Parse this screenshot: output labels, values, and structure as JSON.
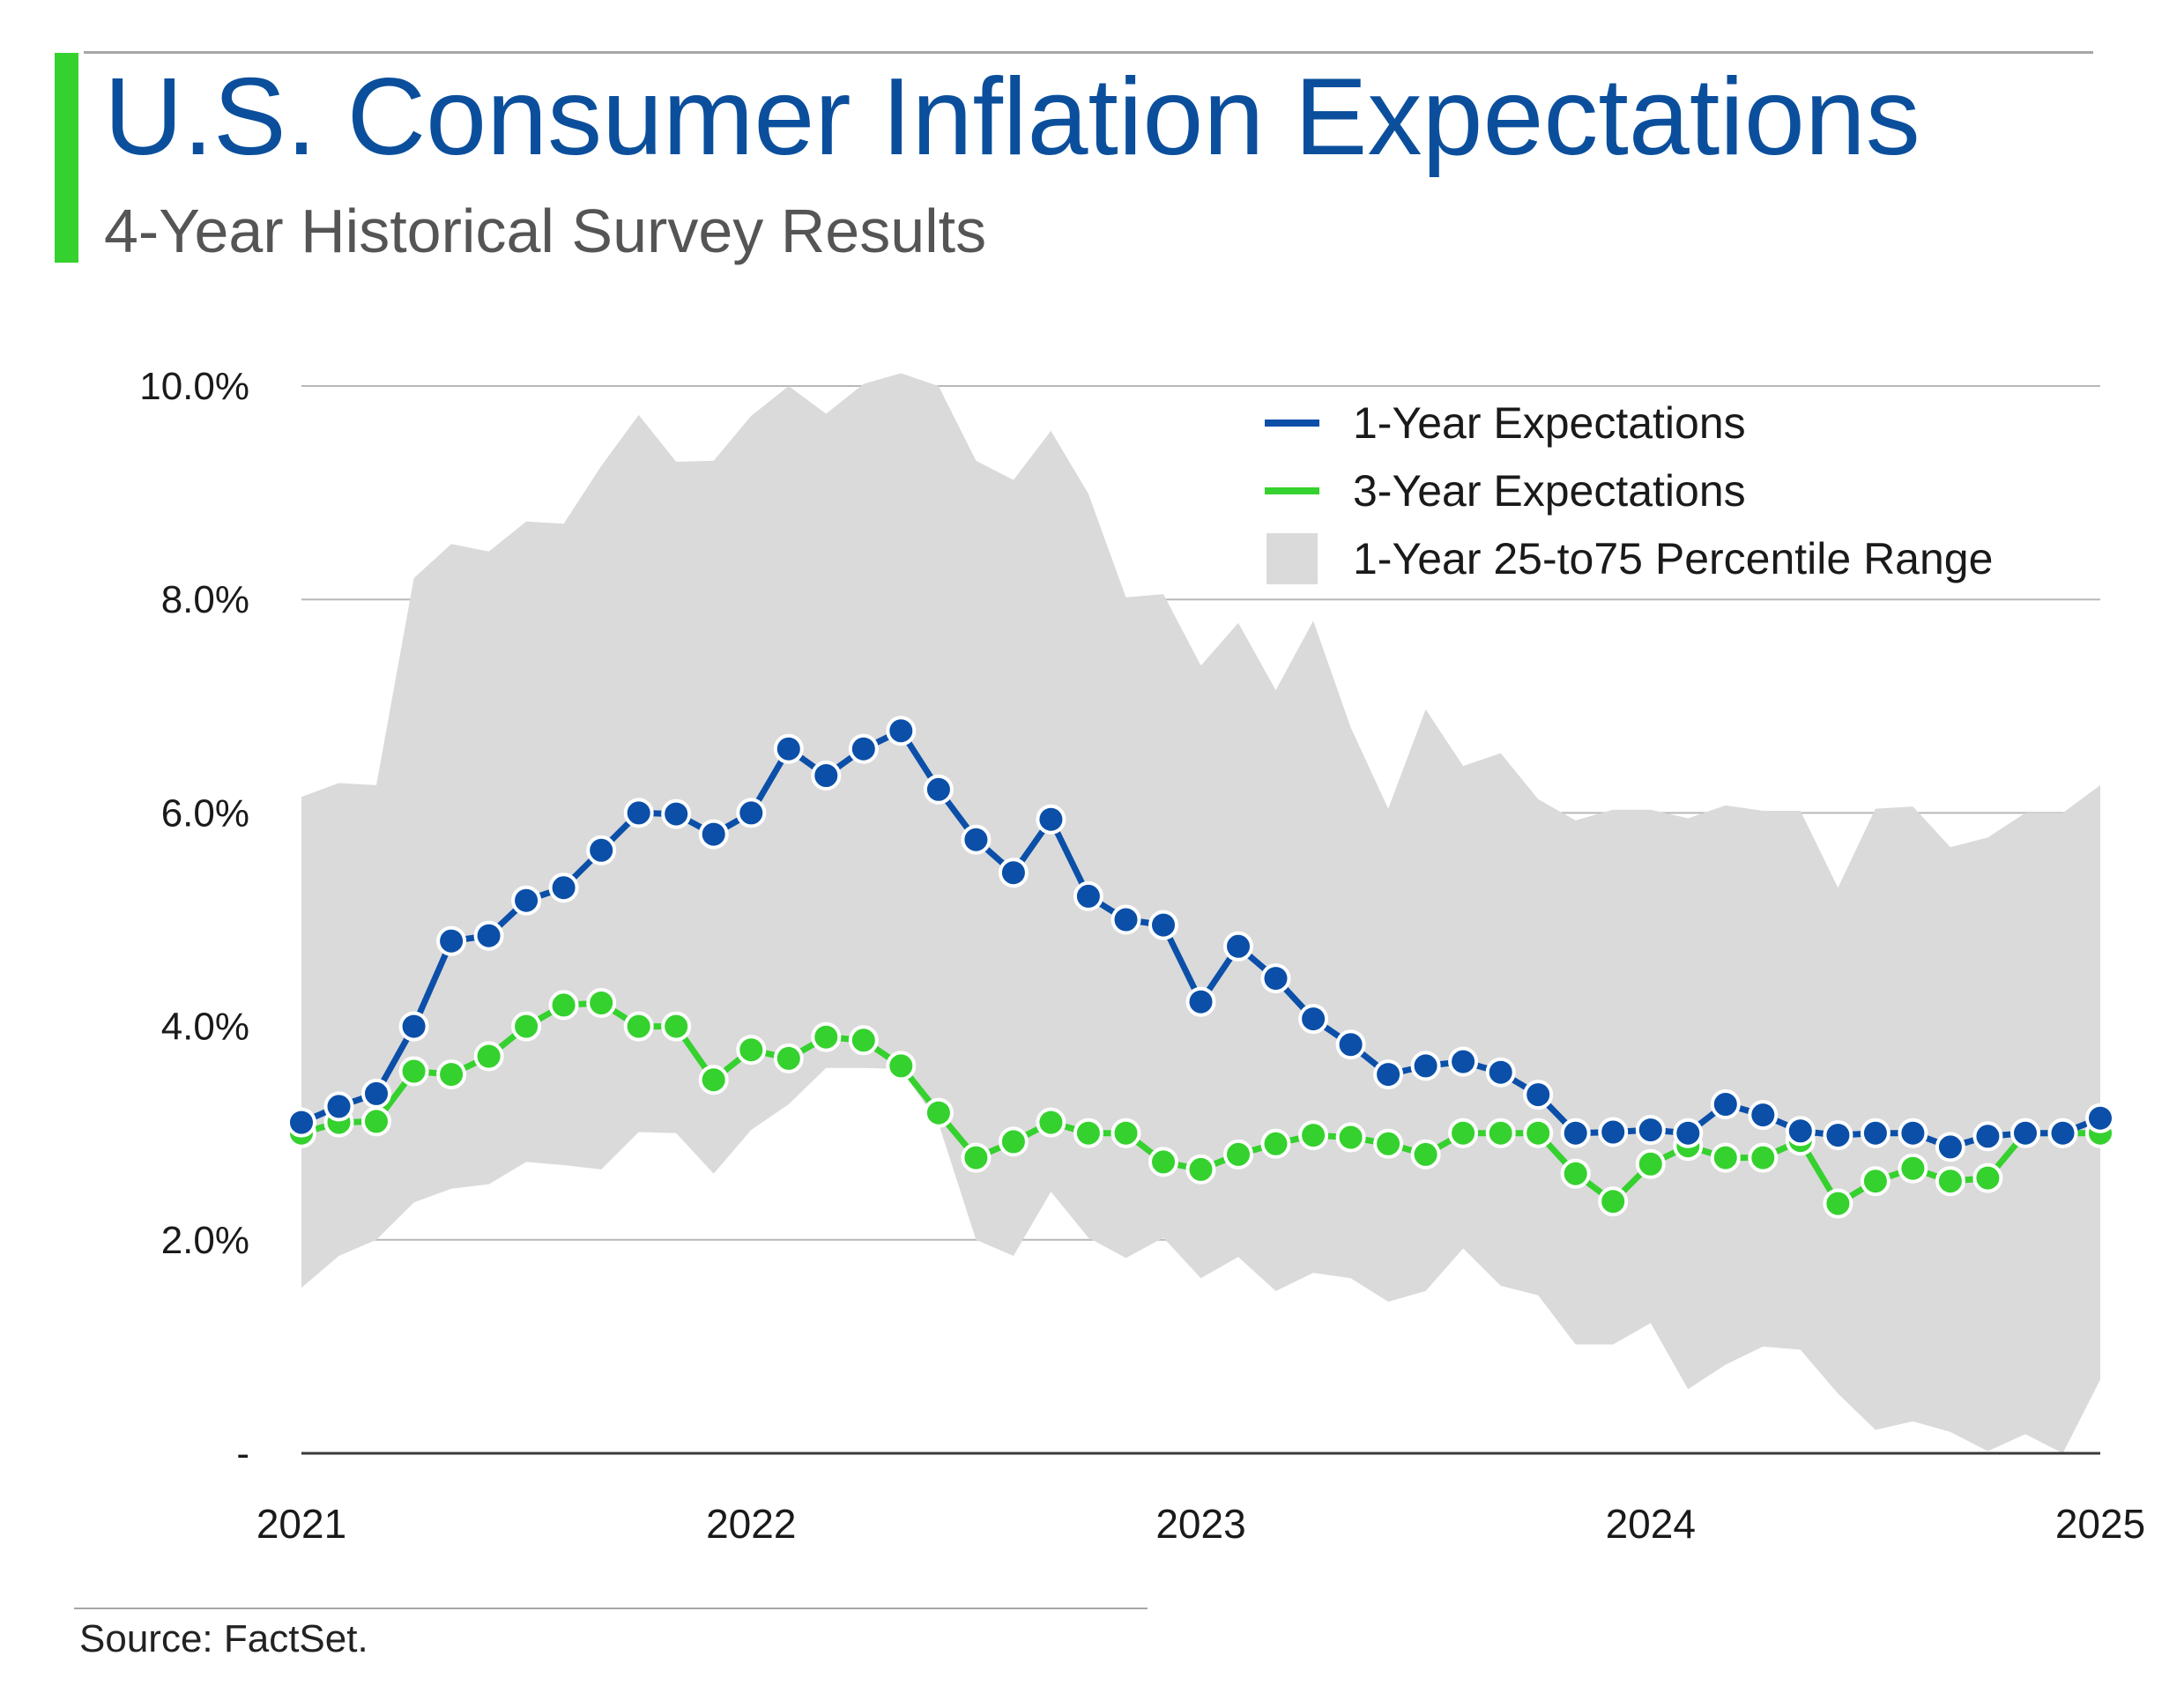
{
  "header": {
    "title": "U.S. Consumer Inflation Expectations",
    "subtitle": "4-Year Historical Survey Results"
  },
  "footer": {
    "source": "Source: FactSet."
  },
  "colors": {
    "one_year": "#0b4fa8",
    "three_year": "#35d12e",
    "range": "#dadada",
    "title": "#0b4f9c",
    "accent": "#35d12e",
    "grid": "#b8b8b8"
  },
  "chart_data": {
    "type": "line",
    "title": "U.S. Consumer Inflation Expectations",
    "subtitle": "4-Year Historical Survey Results",
    "xlabel": "",
    "ylabel": "",
    "x_ticks": [
      "2021",
      "2022",
      "2023",
      "2024",
      "2025"
    ],
    "y_ticks": [
      "-",
      "2.0%",
      "4.0%",
      "6.0%",
      "8.0%",
      "10.0%"
    ],
    "ylim": [
      0,
      10
    ],
    "grid": true,
    "legend_position": "top-right",
    "legend": [
      {
        "label": "1-Year Expectations",
        "kind": "line",
        "color": "#0b4fa8"
      },
      {
        "label": "3-Year Expectations",
        "kind": "line",
        "color": "#35d12e"
      },
      {
        "label": "1-Year 25-to75 Percentile Range",
        "kind": "area",
        "color": "#dadada"
      }
    ],
    "x": [
      "2021-01",
      "2021-02",
      "2021-03",
      "2021-04",
      "2021-05",
      "2021-06",
      "2021-07",
      "2021-08",
      "2021-09",
      "2021-10",
      "2021-11",
      "2021-12",
      "2022-01",
      "2022-02",
      "2022-03",
      "2022-04",
      "2022-05",
      "2022-06",
      "2022-07",
      "2022-08",
      "2022-09",
      "2022-10",
      "2022-11",
      "2022-12",
      "2023-01",
      "2023-02",
      "2023-03",
      "2023-04",
      "2023-05",
      "2023-06",
      "2023-07",
      "2023-08",
      "2023-09",
      "2023-10",
      "2023-11",
      "2023-12",
      "2024-01",
      "2024-02",
      "2024-03",
      "2024-04",
      "2024-05",
      "2024-06",
      "2024-07",
      "2024-08",
      "2024-09",
      "2024-10",
      "2024-11",
      "2024-12",
      "2025-01"
    ],
    "series": [
      {
        "name": "1-Year Expectations",
        "values": [
          3.1,
          3.25,
          3.37,
          4.0,
          4.8,
          4.85,
          5.18,
          5.3,
          5.65,
          6.0,
          5.99,
          5.8,
          6.0,
          6.6,
          6.35,
          6.6,
          6.77,
          6.22,
          5.75,
          5.44,
          5.94,
          5.22,
          5.0,
          4.95,
          4.23,
          4.75,
          4.45,
          4.07,
          3.83,
          3.55,
          3.63,
          3.67,
          3.57,
          3.36,
          3.0,
          3.01,
          3.03,
          3.0,
          3.27,
          3.17,
          3.02,
          2.98,
          3.0,
          3.0,
          2.87,
          2.97,
          3.0,
          3.0,
          3.14
        ]
      },
      {
        "name": "3-Year Expectations",
        "values": [
          3.0,
          3.1,
          3.11,
          3.58,
          3.55,
          3.72,
          4.0,
          4.2,
          4.22,
          4.0,
          4.0,
          3.5,
          3.78,
          3.7,
          3.9,
          3.87,
          3.63,
          3.19,
          2.77,
          2.92,
          3.1,
          3.0,
          3.0,
          2.73,
          2.66,
          2.8,
          2.9,
          2.98,
          2.96,
          2.9,
          2.8,
          3.0,
          3.0,
          3.0,
          2.62,
          2.36,
          2.71,
          2.88,
          2.77,
          2.77,
          2.93,
          2.34,
          2.55,
          2.67,
          2.55,
          2.58,
          3.0,
          3.0,
          3.0
        ]
      },
      {
        "name": "1-Year 25-to75 Percentile Range",
        "upper": [
          6.15,
          6.28,
          6.26,
          8.2,
          8.52,
          8.45,
          8.73,
          8.71,
          9.25,
          9.73,
          9.29,
          9.3,
          9.72,
          10.0,
          9.74,
          10.02,
          10.12,
          10.0,
          9.3,
          9.12,
          9.58,
          8.99,
          8.02,
          8.05,
          7.38,
          7.78,
          7.15,
          7.8,
          6.8,
          6.04,
          6.97,
          6.44,
          6.56,
          6.13,
          5.93,
          6.03,
          6.03,
          5.95,
          6.07,
          6.02,
          6.02,
          5.3,
          6.04,
          6.06,
          5.68,
          5.77,
          6.0,
          6.0,
          6.26
        ],
        "lower": [
          1.55,
          1.85,
          2.0,
          2.35,
          2.48,
          2.52,
          2.73,
          2.7,
          2.66,
          3.01,
          3.0,
          2.62,
          3.03,
          3.27,
          3.61,
          3.61,
          3.6,
          3.09,
          2.0,
          1.85,
          2.45,
          2.02,
          1.83,
          2.02,
          1.64,
          1.84,
          1.52,
          1.69,
          1.64,
          1.42,
          1.52,
          1.92,
          1.57,
          1.48,
          1.02,
          1.02,
          1.22,
          0.6,
          0.83,
          1.0,
          0.97,
          0.56,
          0.22,
          0.3,
          0.2,
          0.02,
          0.18,
          0.0,
          0.69
        ]
      }
    ]
  }
}
